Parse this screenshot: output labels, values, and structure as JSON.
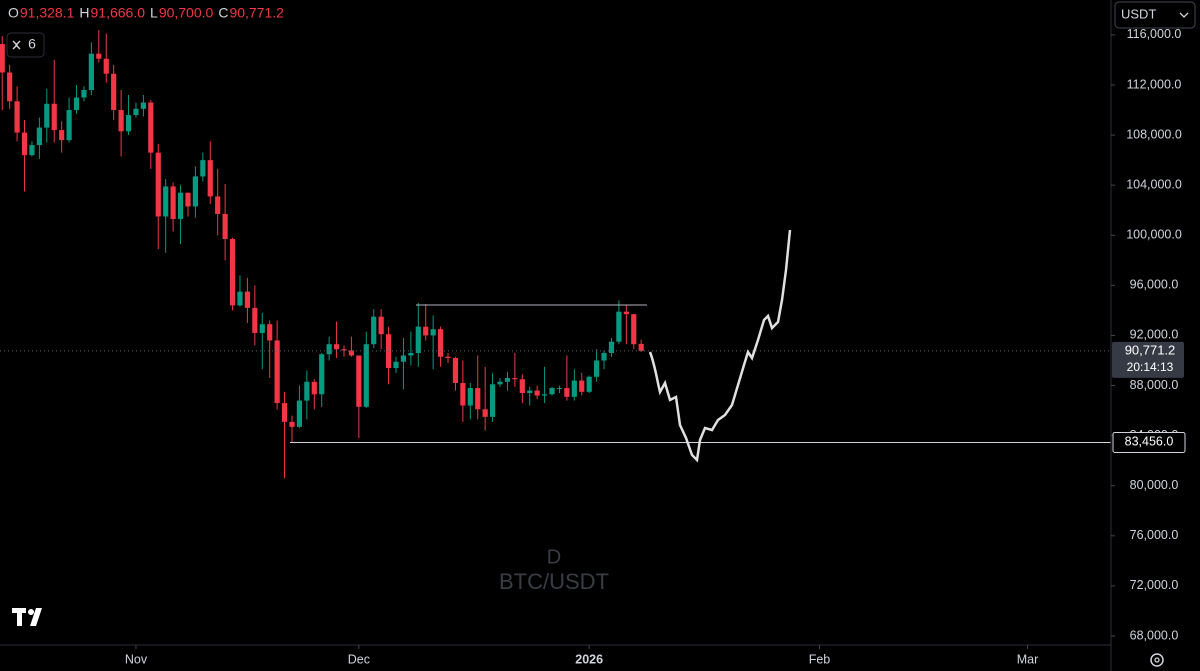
{
  "header": {
    "ohlc": [
      {
        "key": "O",
        "value": "91,328.1"
      },
      {
        "key": "H",
        "value": "91,666.0"
      },
      {
        "key": "L",
        "value": "90,700.0"
      },
      {
        "key": "C",
        "value": "90,771.2"
      }
    ],
    "interval_badge": "6",
    "currency": "USDT"
  },
  "chart_data": {
    "type": "candlestick",
    "open": [
      115271,
      113000,
      110700,
      108200,
      106400,
      107200,
      108600,
      110500,
      108400,
      107600,
      110000,
      111000,
      111600,
      114500,
      114100,
      112900,
      110000,
      108300,
      109600,
      110100,
      110600,
      106600,
      101500,
      103900,
      101300,
      103400,
      102300,
      104700,
      106000,
      103100,
      101700,
      99700,
      94400,
      95500,
      94200,
      92200,
      92900,
      91600,
      86600,
      85100,
      84700,
      86800,
      88300,
      87300,
      90500,
      91300,
      90900,
      90800,
      90400,
      86300,
      91300,
      93500,
      92100,
      89400,
      89900,
      90400,
      90600,
      92700,
      92000,
      92500,
      90300,
      90200,
      88200,
      86400,
      87800,
      86100,
      85500,
      88100,
      88300,
      88600,
      88500,
      87400,
      87600,
      87200,
      87300,
      87800,
      87800,
      87100,
      88400,
      87500,
      88700,
      90000,
      90600,
      91500,
      93900,
      93700,
      91328.1
    ],
    "high": [
      115900,
      113600,
      111900,
      109200,
      107500,
      109400,
      111700,
      114000,
      109100,
      111000,
      112000,
      111900,
      115400,
      116400,
      116100,
      113600,
      111600,
      111200,
      110600,
      111200,
      110800,
      107300,
      104500,
      104200,
      104000,
      103400,
      105500,
      106600,
      107500,
      105300,
      104100,
      99800,
      96800,
      96600,
      96000,
      93800,
      93200,
      93200,
      87500,
      85600,
      88000,
      89200,
      88500,
      90600,
      91900,
      93100,
      91200,
      91900,
      90400,
      92300,
      94100,
      94100,
      92700,
      90300,
      91800,
      92300,
      94600,
      94500,
      93600,
      92700,
      90600,
      90300,
      90000,
      88200,
      90400,
      89500,
      89000,
      88600,
      89100,
      90600,
      88900,
      87900,
      88000,
      89500,
      87900,
      88000,
      90400,
      89300,
      89000,
      88800,
      90900,
      90800,
      91800,
      94800,
      94400,
      93700,
      91666
    ],
    "low": [
      110000,
      110100,
      107500,
      103500,
      106300,
      106100,
      107400,
      107400,
      106600,
      107400,
      109700,
      110700,
      111200,
      113800,
      112200,
      109200,
      106300,
      108000,
      109400,
      109500,
      105300,
      98900,
      98600,
      100300,
      99300,
      101500,
      101400,
      104300,
      102500,
      100000,
      98000,
      94000,
      94300,
      93000,
      91200,
      89300,
      88600,
      86100,
      80600,
      83500,
      84600,
      85300,
      86100,
      86300,
      90000,
      90200,
      90300,
      90300,
      83800,
      86200,
      91000,
      90900,
      88100,
      89000,
      87700,
      89600,
      89500,
      91600,
      89300,
      89500,
      89800,
      87600,
      85100,
      85300,
      85300,
      84400,
      85100,
      87900,
      87600,
      87900,
      86600,
      86400,
      86900,
      86600,
      87200,
      87400,
      86800,
      86800,
      87200,
      87400,
      88300,
      89300,
      90300,
      91300,
      91300,
      90900,
      90700
    ],
    "close": [
      113000,
      110700,
      108200,
      106400,
      107200,
      108600,
      110500,
      108400,
      107600,
      110000,
      111000,
      111600,
      114500,
      114100,
      112900,
      110000,
      108300,
      109600,
      110100,
      110600,
      106600,
      101500,
      103900,
      101300,
      103400,
      102300,
      104700,
      106000,
      103100,
      101700,
      99700,
      94400,
      95500,
      94200,
      92200,
      92900,
      91600,
      86600,
      85100,
      84700,
      86800,
      88300,
      87300,
      90500,
      91300,
      90900,
      90800,
      90400,
      86300,
      91300,
      93500,
      92100,
      89400,
      89900,
      90400,
      90600,
      92700,
      92000,
      92500,
      90300,
      90200,
      88200,
      86400,
      87800,
      86100,
      85500,
      88100,
      88300,
      88600,
      88500,
      87400,
      87600,
      87200,
      87300,
      87800,
      87800,
      87100,
      88400,
      87500,
      88700,
      90000,
      90600,
      91500,
      93900,
      93700,
      91300,
      90771.2
    ],
    "up_color": "#089981",
    "down_color": "#f23645",
    "ylim": [
      67280,
      118788
    ],
    "yticks": [
      {
        "value": 68000,
        "label": "68,000.0"
      },
      {
        "value": 72000,
        "label": "72,000.0"
      },
      {
        "value": 76000,
        "label": "76,000.0"
      },
      {
        "value": 80000,
        "label": "80,000.0"
      },
      {
        "value": 84000,
        "label": "84,000.0"
      },
      {
        "value": 88000,
        "label": "88,000.0"
      },
      {
        "value": 92000,
        "label": "92,000.0"
      },
      {
        "value": 96000,
        "label": "96,000.0"
      },
      {
        "value": 100000,
        "label": "100,000.0"
      },
      {
        "value": 104000,
        "label": "104,000.0"
      },
      {
        "value": 108000,
        "label": "108,000.0"
      },
      {
        "value": 112000,
        "label": "112,000.0"
      },
      {
        "value": 116000,
        "label": "116,000.0"
      }
    ],
    "xlim": [
      -0.3,
      149.1
    ],
    "xticks": [
      {
        "value": 18,
        "label": "Nov"
      },
      {
        "value": 48,
        "label": "Dec"
      },
      {
        "value": 79,
        "label": "2026"
      },
      {
        "value": 110,
        "label": "Feb"
      },
      {
        "value": 138,
        "label": "Mar"
      }
    ],
    "last_price": {
      "value": 90771.2,
      "label": "90,771.2"
    },
    "countdown": "20:14:13",
    "level": {
      "value": 83456,
      "label": "83,456.0"
    },
    "watermark": {
      "interval": "D",
      "symbol": "BTC/USDT"
    }
  }
}
